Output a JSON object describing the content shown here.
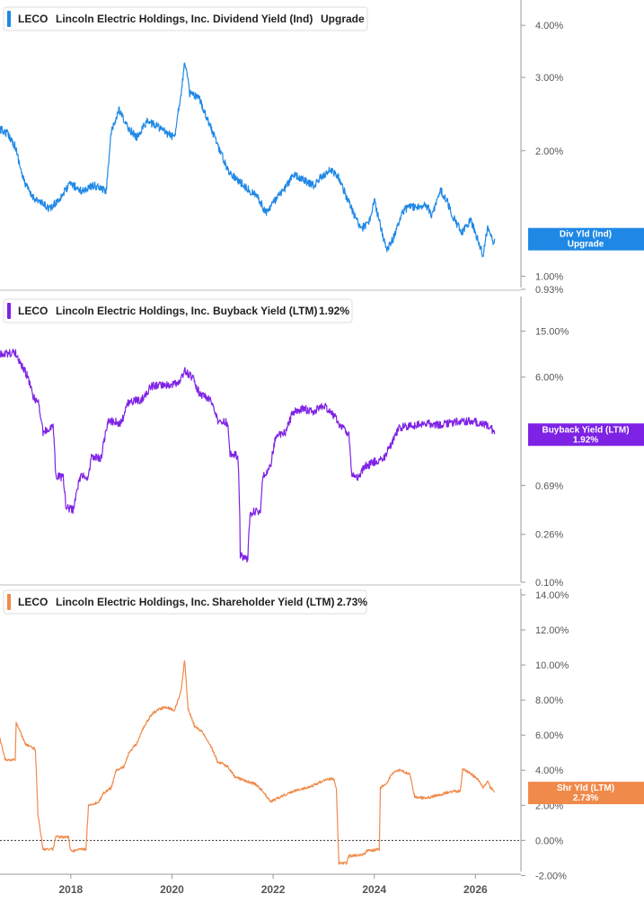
{
  "colors": {
    "dividend": "#1f88e5",
    "buyback": "#7e22e5",
    "shareholder": "#f08a4b",
    "axis": "#999999",
    "text": "#222222",
    "tick": "#555555"
  },
  "x_axis": {
    "range": [
      2016.6,
      2026.9
    ],
    "ticks": [
      {
        "value": 2018,
        "label": "2018"
      },
      {
        "value": 2020,
        "label": "2020"
      },
      {
        "value": 2022,
        "label": "2022"
      },
      {
        "value": 2024,
        "label": "2024"
      },
      {
        "value": 2026,
        "label": "2026"
      }
    ]
  },
  "chart_data": [
    {
      "type": "line",
      "legend": {
        "ticker": "LECO",
        "company": "Lincoln Electric Holdings, Inc.",
        "metric": "Dividend Yield (Ind)",
        "value": "Upgrade"
      },
      "badge": {
        "line1": "Div Yld (Ind)",
        "line2": "Upgrade",
        "value": 1.23
      },
      "scale": "log",
      "ylim": [
        0.93,
        4.6
      ],
      "y_ticks": [
        {
          "value": 4.0,
          "label": "4.00%"
        },
        {
          "value": 3.0,
          "label": "3.00%"
        },
        {
          "value": 2.0,
          "label": "2.00%"
        },
        {
          "value": 1.0,
          "label": "1.00%"
        },
        {
          "value": 0.93,
          "label": "0.93%"
        }
      ],
      "series": [
        {
          "points": [
            [
              2016.6,
              2.25
            ],
            [
              2016.75,
              2.2
            ],
            [
              2016.9,
              2.05
            ],
            [
              2017.05,
              1.72
            ],
            [
              2017.2,
              1.57
            ],
            [
              2017.4,
              1.5
            ],
            [
              2017.6,
              1.45
            ],
            [
              2017.8,
              1.55
            ],
            [
              2018.0,
              1.67
            ],
            [
              2018.2,
              1.6
            ],
            [
              2018.45,
              1.65
            ],
            [
              2018.7,
              1.6
            ],
            [
              2018.8,
              2.2
            ],
            [
              2018.95,
              2.5
            ],
            [
              2019.1,
              2.3
            ],
            [
              2019.3,
              2.15
            ],
            [
              2019.5,
              2.35
            ],
            [
              2019.7,
              2.3
            ],
            [
              2019.9,
              2.2
            ],
            [
              2020.05,
              2.15
            ],
            [
              2020.2,
              2.85
            ],
            [
              2020.25,
              3.3
            ],
            [
              2020.35,
              2.75
            ],
            [
              2020.55,
              2.65
            ],
            [
              2020.75,
              2.3
            ],
            [
              2020.95,
              2.0
            ],
            [
              2021.1,
              1.8
            ],
            [
              2021.3,
              1.7
            ],
            [
              2021.5,
              1.62
            ],
            [
              2021.7,
              1.55
            ],
            [
              2021.85,
              1.42
            ],
            [
              2022.0,
              1.5
            ],
            [
              2022.2,
              1.6
            ],
            [
              2022.4,
              1.75
            ],
            [
              2022.6,
              1.7
            ],
            [
              2022.8,
              1.65
            ],
            [
              2023.0,
              1.75
            ],
            [
              2023.15,
              1.8
            ],
            [
              2023.3,
              1.72
            ],
            [
              2023.45,
              1.55
            ],
            [
              2023.6,
              1.4
            ],
            [
              2023.75,
              1.3
            ],
            [
              2023.9,
              1.35
            ],
            [
              2024.0,
              1.52
            ],
            [
              2024.1,
              1.35
            ],
            [
              2024.25,
              1.15
            ],
            [
              2024.4,
              1.25
            ],
            [
              2024.55,
              1.42
            ],
            [
              2024.7,
              1.48
            ],
            [
              2024.85,
              1.45
            ],
            [
              2025.0,
              1.5
            ],
            [
              2025.15,
              1.4
            ],
            [
              2025.3,
              1.62
            ],
            [
              2025.45,
              1.5
            ],
            [
              2025.6,
              1.35
            ],
            [
              2025.75,
              1.27
            ],
            [
              2025.9,
              1.37
            ],
            [
              2026.05,
              1.22
            ],
            [
              2026.15,
              1.12
            ],
            [
              2026.25,
              1.32
            ],
            [
              2026.35,
              1.21
            ],
            [
              2026.38,
              1.23
            ]
          ]
        }
      ]
    },
    {
      "type": "line",
      "legend": {
        "ticker": "LECO",
        "company": "Lincoln Electric Holdings, Inc.",
        "metric": "Buyback Yield (LTM)",
        "value": "1.92%"
      },
      "badge": {
        "line1": "Buyback Yield (LTM)",
        "line2": "1.92%",
        "value": 1.92
      },
      "scale": "log",
      "ylim": [
        0.1,
        30
      ],
      "y_ticks": [
        {
          "value": 15.0,
          "label": "15.00%"
        },
        {
          "value": 6.0,
          "label": "6.00%"
        },
        {
          "value": 0.69,
          "label": "0.69%"
        },
        {
          "value": 0.26,
          "label": "0.26%"
        },
        {
          "value": 0.1,
          "label": "0.10%"
        }
      ],
      "series": [
        {
          "points": [
            [
              2016.6,
              9.5
            ],
            [
              2016.9,
              9.8
            ],
            [
              2017.0,
              8.0
            ],
            [
              2017.15,
              6.0
            ],
            [
              2017.25,
              4.0
            ],
            [
              2017.35,
              3.7
            ],
            [
              2017.45,
              2.0
            ],
            [
              2017.65,
              2.2
            ],
            [
              2017.7,
              0.85
            ],
            [
              2017.85,
              0.8
            ],
            [
              2017.9,
              0.45
            ],
            [
              2018.05,
              0.42
            ],
            [
              2018.2,
              0.85
            ],
            [
              2018.35,
              0.8
            ],
            [
              2018.4,
              1.2
            ],
            [
              2018.6,
              1.2
            ],
            [
              2018.75,
              2.5
            ],
            [
              2019.0,
              2.4
            ],
            [
              2019.15,
              3.7
            ],
            [
              2019.4,
              3.8
            ],
            [
              2019.6,
              5.0
            ],
            [
              2019.8,
              5.2
            ],
            [
              2019.95,
              5.0
            ],
            [
              2020.15,
              5.5
            ],
            [
              2020.25,
              6.8
            ],
            [
              2020.4,
              6.0
            ],
            [
              2020.55,
              4.2
            ],
            [
              2020.75,
              3.9
            ],
            [
              2020.9,
              2.5
            ],
            [
              2021.1,
              2.4
            ],
            [
              2021.15,
              1.3
            ],
            [
              2021.3,
              1.25
            ],
            [
              2021.35,
              0.17
            ],
            [
              2021.5,
              0.16
            ],
            [
              2021.55,
              0.4
            ],
            [
              2021.75,
              0.42
            ],
            [
              2021.8,
              0.85
            ],
            [
              2021.95,
              1.0
            ],
            [
              2022.05,
              1.8
            ],
            [
              2022.25,
              2.0
            ],
            [
              2022.4,
              3.0
            ],
            [
              2022.6,
              3.2
            ],
            [
              2022.8,
              3.0
            ],
            [
              2023.0,
              3.4
            ],
            [
              2023.2,
              2.8
            ],
            [
              2023.35,
              2.2
            ],
            [
              2023.5,
              1.9
            ],
            [
              2023.55,
              0.85
            ],
            [
              2023.7,
              0.8
            ],
            [
              2023.8,
              1.0
            ],
            [
              2024.0,
              1.1
            ],
            [
              2024.2,
              1.2
            ],
            [
              2024.35,
              1.6
            ],
            [
              2024.5,
              2.2
            ],
            [
              2024.8,
              2.3
            ],
            [
              2025.0,
              2.4
            ],
            [
              2025.3,
              2.3
            ],
            [
              2025.6,
              2.45
            ],
            [
              2025.9,
              2.5
            ],
            [
              2026.1,
              2.4
            ],
            [
              2026.3,
              2.2
            ],
            [
              2026.38,
              1.92
            ]
          ]
        }
      ]
    },
    {
      "type": "line",
      "legend": {
        "ticker": "LECO",
        "company": "Lincoln Electric Holdings, Inc.",
        "metric": "Shareholder Yield (LTM)",
        "value": "2.73%"
      },
      "badge": {
        "line1": "Shr Yld (LTM)",
        "line2": "2.73%",
        "value": 2.73
      },
      "scale": "linear",
      "ylim": [
        -2.8,
        14.0
      ],
      "zero_line": true,
      "y_ticks": [
        {
          "value": 14.0,
          "label": "14.00%"
        },
        {
          "value": 12.0,
          "label": "12.00%"
        },
        {
          "value": 10.0,
          "label": "10.00%"
        },
        {
          "value": 8.0,
          "label": "8.00%"
        },
        {
          "value": 6.0,
          "label": "6.00%"
        },
        {
          "value": 4.0,
          "label": "4.00%"
        },
        {
          "value": 2.0,
          "label": "2.00%"
        },
        {
          "value": 0.0,
          "label": "0.00%"
        },
        {
          "value": -2.0,
          "label": "-2.00%"
        }
      ],
      "series": [
        {
          "points": [
            [
              2016.6,
              5.8
            ],
            [
              2016.7,
              4.6
            ],
            [
              2016.9,
              4.6
            ],
            [
              2016.92,
              6.7
            ],
            [
              2017.0,
              6.2
            ],
            [
              2017.1,
              5.5
            ],
            [
              2017.3,
              5.2
            ],
            [
              2017.35,
              1.5
            ],
            [
              2017.45,
              -0.5
            ],
            [
              2017.65,
              -0.5
            ],
            [
              2017.7,
              0.2
            ],
            [
              2017.95,
              0.2
            ],
            [
              2018.0,
              -0.6
            ],
            [
              2018.1,
              -0.6
            ],
            [
              2018.15,
              -0.5
            ],
            [
              2018.3,
              -0.5
            ],
            [
              2018.35,
              2.0
            ],
            [
              2018.55,
              2.2
            ],
            [
              2018.65,
              2.7
            ],
            [
              2018.8,
              3.0
            ],
            [
              2018.9,
              4.0
            ],
            [
              2019.05,
              4.2
            ],
            [
              2019.15,
              5.0
            ],
            [
              2019.3,
              5.5
            ],
            [
              2019.45,
              6.5
            ],
            [
              2019.6,
              7.2
            ],
            [
              2019.75,
              7.5
            ],
            [
              2019.9,
              7.6
            ],
            [
              2020.05,
              7.4
            ],
            [
              2020.18,
              8.5
            ],
            [
              2020.25,
              10.3
            ],
            [
              2020.32,
              7.5
            ],
            [
              2020.45,
              6.5
            ],
            [
              2020.6,
              6.2
            ],
            [
              2020.75,
              5.5
            ],
            [
              2020.9,
              4.5
            ],
            [
              2021.1,
              4.2
            ],
            [
              2021.25,
              3.6
            ],
            [
              2021.45,
              3.4
            ],
            [
              2021.65,
              3.2
            ],
            [
              2021.8,
              2.8
            ],
            [
              2021.95,
              2.2
            ],
            [
              2022.15,
              2.5
            ],
            [
              2022.4,
              2.8
            ],
            [
              2022.65,
              3.0
            ],
            [
              2022.85,
              3.2
            ],
            [
              2023.05,
              3.5
            ],
            [
              2023.2,
              3.5
            ],
            [
              2023.25,
              3.0
            ],
            [
              2023.3,
              -1.3
            ],
            [
              2023.45,
              -1.3
            ],
            [
              2023.5,
              -0.9
            ],
            [
              2023.8,
              -0.8
            ],
            [
              2023.85,
              -0.6
            ],
            [
              2024.1,
              -0.5
            ],
            [
              2024.12,
              3.0
            ],
            [
              2024.25,
              3.3
            ],
            [
              2024.35,
              3.8
            ],
            [
              2024.5,
              4.0
            ],
            [
              2024.7,
              3.8
            ],
            [
              2024.8,
              2.5
            ],
            [
              2025.0,
              2.4
            ],
            [
              2025.3,
              2.6
            ],
            [
              2025.55,
              2.8
            ],
            [
              2025.7,
              2.8
            ],
            [
              2025.75,
              4.1
            ],
            [
              2025.9,
              3.8
            ],
            [
              2026.05,
              3.5
            ],
            [
              2026.15,
              3.0
            ],
            [
              2026.25,
              3.4
            ],
            [
              2026.3,
              3.0
            ],
            [
              2026.38,
              2.73
            ]
          ]
        }
      ]
    }
  ]
}
